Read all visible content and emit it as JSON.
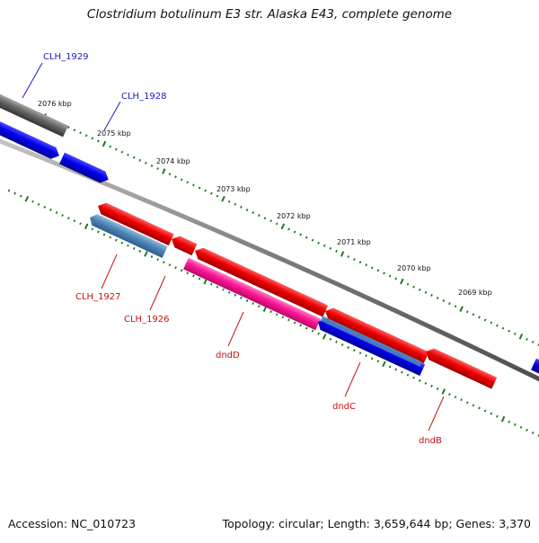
{
  "title": "Clostridium botulinum E3 str. Alaska E43, complete genome",
  "footer": {
    "accession": "Accession: NC_010723",
    "summary": "Topology: circular; Length: 3,659,644 bp; Genes: 3,370"
  },
  "ruler": {
    "labels": [
      "2076 kbp",
      "2075 kbp",
      "2074 kbp",
      "2073 kbp",
      "2072 kbp",
      "2071 kbp",
      "2070 kbp",
      "2069 kbp"
    ]
  },
  "genes": {
    "forward_strand": [
      "CLH_1929",
      "CLH_1928"
    ],
    "reverse_strand": [
      "CLH_1927",
      "CLH_1926",
      "dndD",
      "dndC",
      "dndB"
    ]
  },
  "colors": {
    "forward_label": "#1b1bcc",
    "reverse_label": "#cc1111",
    "ruler_tick": "#1f7a1f",
    "backbone": "#8a8a8a",
    "feature_red": "#ee0000",
    "feature_blue": "#0000ee",
    "feature_steelblue": "#4f86b8",
    "feature_pink": "#ff1493",
    "feature_gray": "#666666"
  }
}
